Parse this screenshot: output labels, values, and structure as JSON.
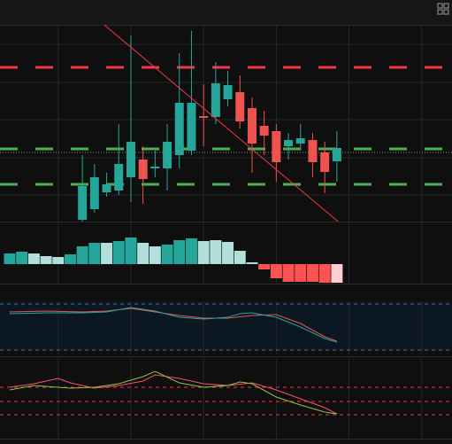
{
  "chart_data": [
    {
      "type": "candlestick",
      "x": [
        6,
        7,
        8,
        9,
        10,
        11,
        12,
        13,
        14,
        15,
        16,
        17,
        18,
        19,
        20,
        21,
        22,
        23,
        24,
        25,
        26,
        27
      ],
      "open": [
        52,
        64,
        83,
        85,
        100,
        120,
        110,
        110,
        125,
        130,
        169,
        168,
        188,
        196,
        178,
        158,
        152,
        135,
        138,
        142,
        128,
        118
      ],
      "high": [
        125,
        115,
        105,
        160,
        260,
        135,
        130,
        160,
        240,
        265,
        205,
        230,
        220,
        215,
        190,
        175,
        160,
        150,
        160,
        150,
        140,
        152
      ],
      "low": [
        50,
        60,
        78,
        80,
        72,
        70,
        100,
        85,
        110,
        125,
        135,
        160,
        180,
        155,
        105,
        125,
        95,
        120,
        130,
        100,
        82,
        95
      ],
      "close": [
        90,
        100,
        92,
        115,
        140,
        98,
        112,
        140,
        184,
        184,
        167,
        206,
        204,
        163,
        138,
        147,
        117,
        142,
        144,
        117,
        106,
        133
      ],
      "up_color": "#26a69a",
      "down_color": "#ef5350",
      "xlim": [
        -0.8,
        36.5
      ],
      "ylim": [
        50,
        272
      ],
      "xgrid": [
        4,
        10,
        16,
        22,
        28,
        34
      ],
      "ygrid": [
        250,
        207,
        165,
        122,
        80
      ],
      "levels": [
        {
          "value": 224,
          "color": "#f23645"
        },
        {
          "value": 132,
          "color": "#4caf50"
        },
        {
          "value": 92,
          "color": "#4caf50"
        }
      ],
      "price_line": 128,
      "trendline": {
        "x": [
          7.8,
          27.1
        ],
        "y": [
          272,
          50
        ],
        "color": "#f23645"
      }
    },
    {
      "type": "bar",
      "x": [
        0,
        1,
        2,
        3,
        4,
        5,
        6,
        7,
        8,
        9,
        10,
        11,
        12,
        13,
        14,
        15,
        16,
        17,
        18,
        19,
        20,
        21,
        22,
        23,
        24,
        25,
        26,
        27
      ],
      "values": [
        12,
        14,
        12,
        9,
        8,
        11,
        20,
        24,
        24,
        26,
        30,
        24,
        20,
        22,
        27,
        29,
        26,
        27,
        25,
        15,
        2,
        -6,
        -16,
        -20,
        -20,
        -20,
        -21,
        -21
      ],
      "colors": [
        "#26a69a",
        "#26a69a",
        "#b2dfdb",
        "#b2dfdb",
        "#b2dfdb",
        "#26a69a",
        "#26a69a",
        "#26a69a",
        "#b2dfdb",
        "#26a69a",
        "#26a69a",
        "#b2dfdb",
        "#b2dfdb",
        "#26a69a",
        "#26a69a",
        "#26a69a",
        "#b2dfdb",
        "#b2dfdb",
        "#b2dfdb",
        "#b2dfdb",
        "#b2dfdb",
        "#ff5252",
        "#ff5252",
        "#ff5252",
        "#ff5252",
        "#ff5252",
        "#ff5252",
        "#ffcdd2"
      ],
      "xlim": [
        -0.8,
        36.5
      ],
      "ylim": [
        -22,
        48
      ]
    },
    {
      "type": "line",
      "xlim": [
        -0.8,
        36.5
      ],
      "ylim": [
        0,
        60
      ],
      "levels": [
        {
          "value": 57,
          "color": "#5d6b80"
        },
        {
          "value": 5,
          "color": "#5d6b80"
        }
      ],
      "series": [
        {
          "color": "#ef5350",
          "x": [
            0,
            3,
            6,
            8,
            10,
            12,
            14,
            16,
            18,
            20,
            22,
            24,
            26,
            27
          ],
          "values": [
            48,
            49,
            48,
            49,
            52,
            48,
            44,
            41,
            41,
            44,
            45,
            35,
            20,
            15
          ]
        },
        {
          "color": "#26a69a",
          "x": [
            0,
            3,
            6,
            8,
            10,
            12,
            14,
            16,
            18,
            19,
            20,
            22,
            24,
            26,
            27
          ],
          "values": [
            46,
            47,
            47,
            48,
            53,
            49,
            42,
            40,
            42,
            46,
            47,
            42,
            31,
            18,
            14
          ]
        }
      ]
    },
    {
      "type": "line",
      "xlim": [
        -0.8,
        36.5
      ],
      "ylim": [
        0,
        90
      ],
      "levels": [
        {
          "value": 58,
          "color": "#f23645"
        },
        {
          "value": 42,
          "color": "#f23645"
        },
        {
          "value": 27,
          "color": "#f23645"
        }
      ],
      "series": [
        {
          "color": "#ff4d6a",
          "x": [
            0,
            2,
            4,
            5,
            7,
            9,
            11,
            12,
            14,
            16,
            18,
            20,
            22,
            24,
            26,
            27
          ],
          "values": [
            58,
            62,
            68,
            63,
            57,
            60,
            65,
            72,
            68,
            62,
            60,
            63,
            55,
            45,
            35,
            28
          ]
        },
        {
          "color": "#8bc34a",
          "x": [
            0,
            2,
            4,
            5,
            7,
            9,
            11,
            12,
            14,
            16,
            18,
            19,
            20,
            22,
            24,
            26,
            27
          ],
          "values": [
            55,
            60,
            58,
            57,
            58,
            62,
            70,
            76,
            63,
            58,
            60,
            64,
            62,
            47,
            38,
            30,
            28
          ]
        }
      ]
    }
  ]
}
